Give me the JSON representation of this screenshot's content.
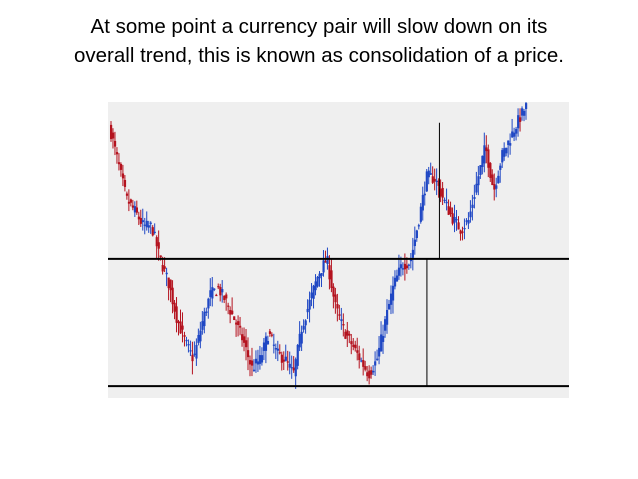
{
  "slide": {
    "title_line1": "At some point a currency pair will slow down on its",
    "title_line2": "overall trend, this is known as consolidation of a price."
  },
  "colors": {
    "background": "#ffffff",
    "chart_background": "#efefef",
    "up_candle": "#1f47c4",
    "down_candle": "#b4121e",
    "level_line": "#000000"
  },
  "chart_data": {
    "type": "line",
    "title": "",
    "xlabel": "",
    "ylabel": "",
    "grid": false,
    "legend": "none",
    "ylim": [
      0,
      100
    ],
    "xlim": [
      0,
      100
    ],
    "price_series": {
      "x": [
        0,
        2,
        4,
        6,
        8,
        10,
        12,
        14,
        16,
        18,
        20,
        22,
        24,
        26,
        28,
        30,
        32,
        34,
        36,
        38,
        40,
        42,
        44,
        46,
        48,
        50,
        52,
        54,
        56,
        58,
        60,
        62,
        64,
        66,
        68,
        70,
        72,
        74,
        76,
        78,
        80,
        82,
        84,
        86,
        88,
        90,
        92,
        94,
        96,
        98,
        100
      ],
      "y": [
        91,
        79,
        67,
        63,
        58,
        58,
        47,
        39,
        27,
        19,
        13,
        25,
        35,
        37,
        32,
        26,
        19,
        10,
        13,
        22,
        15,
        13,
        8,
        24,
        33,
        42,
        47,
        31,
        23,
        18,
        13,
        8,
        13,
        26,
        38,
        45,
        46,
        60,
        75,
        74,
        67,
        61,
        57,
        60,
        73,
        85,
        70,
        82,
        88,
        94,
        99
      ]
    },
    "resistance_level": 47,
    "support_level": 4,
    "projection_lines": [
      {
        "x": 76,
        "from": 4,
        "to": 47
      },
      {
        "x": 79,
        "from": 47,
        "to": 93
      }
    ]
  }
}
